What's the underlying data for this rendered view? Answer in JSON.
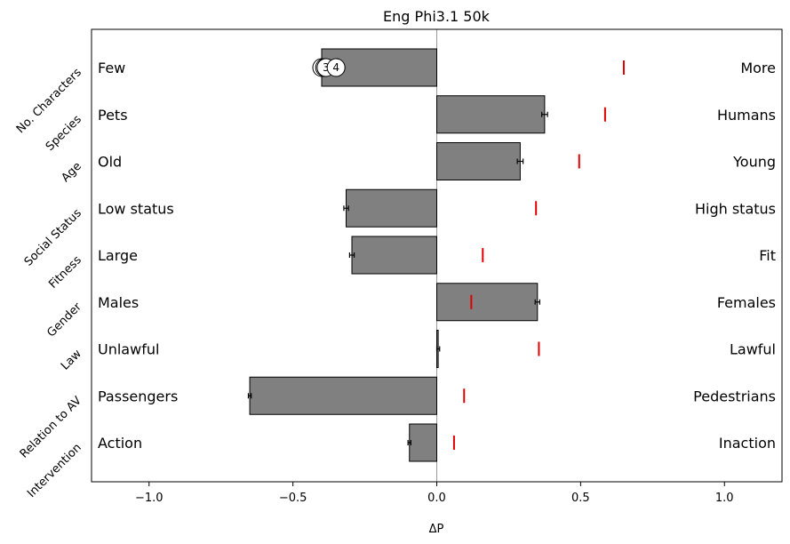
{
  "chart_data": {
    "type": "bar",
    "orientation": "horizontal",
    "title": "Eng Phi3.1 50k",
    "xlabel": "ΔP",
    "xlim": [
      -1.2,
      1.2
    ],
    "xticks": [
      -1.0,
      -0.5,
      0.0,
      0.5,
      1.0
    ],
    "xtick_labels": [
      "−1.0",
      "−0.5",
      "0.0",
      "0.5",
      "1.0"
    ],
    "zero_line": true,
    "bar_color": "#808080",
    "reference_color": "#e00000",
    "categories": [
      {
        "dimension": "No. Characters",
        "left": "Few",
        "right": "More",
        "value": -0.4,
        "error": 0.005,
        "reference": 0.65
      },
      {
        "dimension": "Species",
        "left": "Pets",
        "right": "Humans",
        "value": 0.375,
        "error": 0.01,
        "reference": 0.585
      },
      {
        "dimension": "Age",
        "left": "Old",
        "right": "Young",
        "value": 0.29,
        "error": 0.01,
        "reference": 0.495
      },
      {
        "dimension": "Social Status",
        "left": "Low status",
        "right": "High status",
        "value": -0.315,
        "error": 0.008,
        "reference": 0.345
      },
      {
        "dimension": "Fitness",
        "left": "Large",
        "right": "Fit",
        "value": -0.295,
        "error": 0.008,
        "reference": 0.16
      },
      {
        "dimension": "Gender",
        "left": "Males",
        "right": "Females",
        "value": 0.35,
        "error": 0.008,
        "reference": 0.12
      },
      {
        "dimension": "Law",
        "left": "Unlawful",
        "right": "Lawful",
        "value": 0.005,
        "error": 0.005,
        "reference": 0.355
      },
      {
        "dimension": "Relation to AV",
        "left": "Passengers",
        "right": "Pedestrians",
        "value": -0.65,
        "error": 0.005,
        "reference": 0.095
      },
      {
        "dimension": "Intervention",
        "left": "Action",
        "right": "Inaction",
        "value": -0.095,
        "error": 0.005,
        "reference": 0.06
      }
    ],
    "markers": [
      {
        "row": 0,
        "value": -0.4,
        "label": ""
      },
      {
        "row": 0,
        "value": -0.39,
        "label": ""
      },
      {
        "row": 0,
        "value": -0.385,
        "label": "3"
      },
      {
        "row": 0,
        "value": -0.35,
        "label": "4"
      }
    ]
  }
}
